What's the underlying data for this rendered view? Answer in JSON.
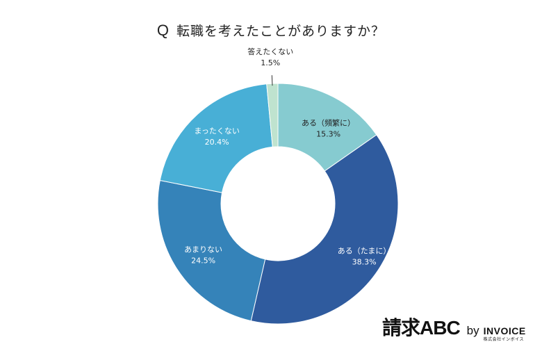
{
  "title": {
    "q": "Q",
    "text": "転職を考えたことがありますか？"
  },
  "chart_data": {
    "type": "pie",
    "donut": true,
    "title": "転職を考えたことがありますか？",
    "slices": [
      {
        "label": "ある（頻繁に）",
        "value": 15.3,
        "display": "15.3%",
        "color": "#86cbd0"
      },
      {
        "label": "ある（たまに）",
        "value": 38.3,
        "display": "38.3%",
        "color": "#2f5b9e"
      },
      {
        "label": "あまりない",
        "value": 24.5,
        "display": "24.5%",
        "color": "#3583b9"
      },
      {
        "label": "まったくない",
        "value": 20.4,
        "display": "20.4%",
        "color": "#48afd6"
      },
      {
        "label": "答えたくない",
        "value": 1.5,
        "display": "1.5%",
        "color": "#bfe3cf"
      }
    ]
  },
  "logo": {
    "brand": "請求ABC",
    "by": "by",
    "company": "INVOICE",
    "company_sub": "株式会社インボイス"
  }
}
